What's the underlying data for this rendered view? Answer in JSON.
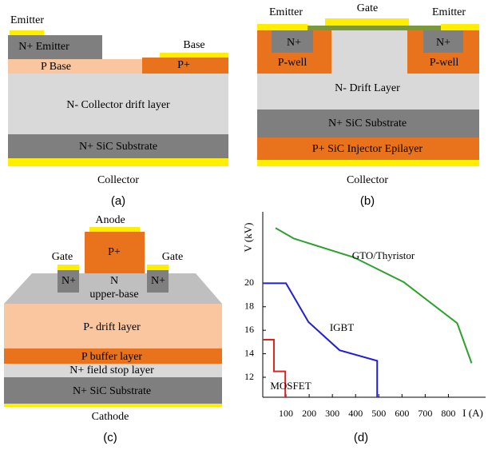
{
  "panel_a": {
    "emitter": "Emitter",
    "n_emitter": "N+ Emitter",
    "base": "Base",
    "p_base": "P Base",
    "p_plus": "P+",
    "drift": "N- Collector drift layer",
    "substrate": "N+ SiC Substrate",
    "collector": "Collector",
    "caption": "(a)"
  },
  "panel_b": {
    "emitter_left": "Emitter",
    "gate": "Gate",
    "emitter_right": "Emitter",
    "n_plus_left": "N+",
    "n_plus_right": "N+",
    "p_well_left": "P-well",
    "p_well_right": "P-well",
    "drift": "N- Drift Layer",
    "substrate": "N+ SiC Substrate",
    "injector": "P+ SiC Injector Epilayer",
    "collector": "Collector",
    "caption": "(b)"
  },
  "panel_c": {
    "anode": "Anode",
    "p_plus": "P+",
    "gate_left": "Gate",
    "gate_right": "Gate",
    "n_plus_left": "N+",
    "n_plus_right": "N+",
    "n_base": "N",
    "upper_base": "upper-base",
    "drift": "P- drift layer",
    "buffer": "P buffer layer",
    "field_stop": "N+ field stop layer",
    "substrate": "N+ SiC Substrate",
    "cathode": "Cathode",
    "caption": "(c)"
  },
  "chart_data": {
    "type": "line",
    "caption": "(d)",
    "xlabel": "I (A)",
    "ylabel": "V (kV)",
    "xlim": [
      0,
      950
    ],
    "ylim": [
      10.3,
      25.6
    ],
    "xticks": [
      100,
      200,
      300,
      400,
      500,
      600,
      700,
      800
    ],
    "yticks": [
      12,
      14,
      16,
      18,
      20
    ],
    "series": [
      {
        "name": "GTO/Thyristor",
        "color": "#2ca02c",
        "x": [
          55,
          134,
          393,
          607,
          838,
          900
        ],
        "values": [
          24.7,
          23.8,
          22.2,
          20.1,
          16.6,
          13.2
        ]
      },
      {
        "name": "IGBT",
        "color": "#1f1fd6",
        "x": [
          0,
          100,
          197,
          331,
          493,
          493
        ],
        "values": [
          20,
          20,
          16.7,
          14.3,
          13.4,
          10.3
        ]
      },
      {
        "name": "MOSFET",
        "color": "#e02020",
        "x": [
          0,
          48,
          48,
          97,
          97
        ],
        "values": [
          15.2,
          15.2,
          12.5,
          12.5,
          10.3
        ]
      }
    ]
  }
}
